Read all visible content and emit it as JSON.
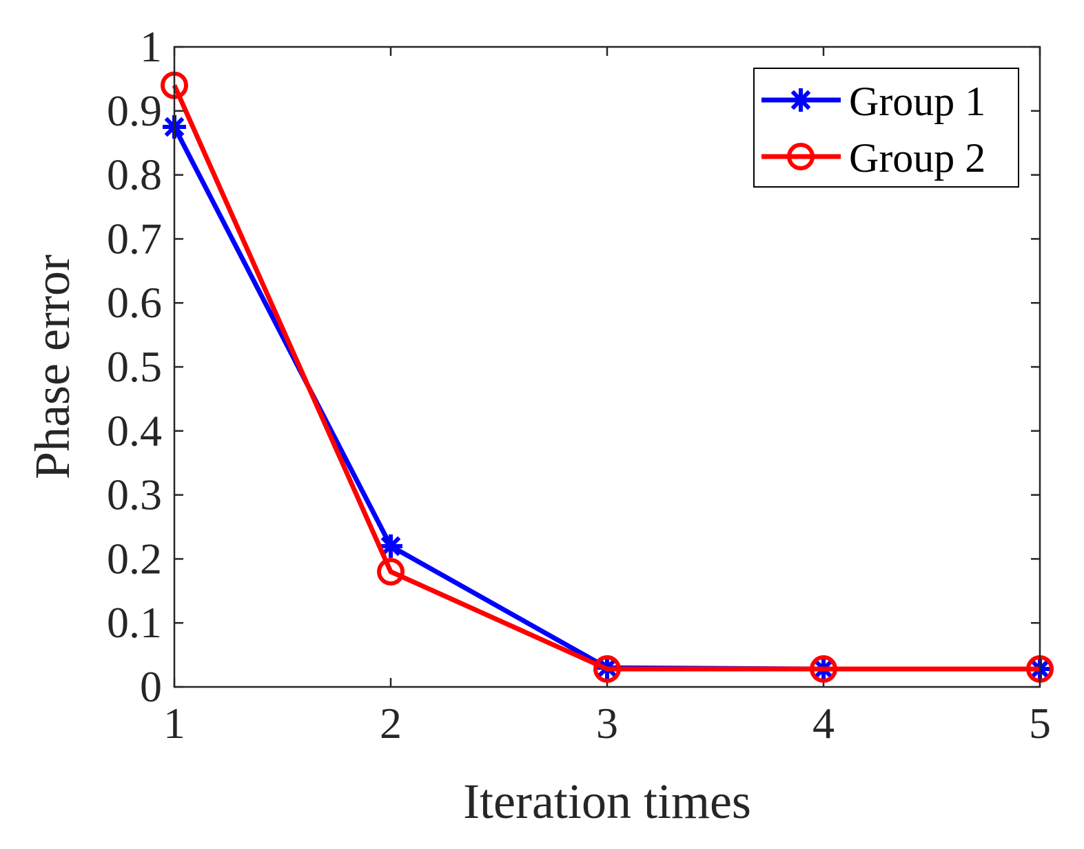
{
  "chart_data": {
    "type": "line",
    "title": "",
    "xlabel": "Iteration times",
    "ylabel": "Phase error",
    "x": [
      1,
      2,
      3,
      4,
      5
    ],
    "xlim": [
      1,
      5
    ],
    "ylim": [
      0,
      1
    ],
    "xticks": [
      "1",
      "2",
      "3",
      "4",
      "5"
    ],
    "yticks": [
      "0",
      "0.1",
      "0.2",
      "0.3",
      "0.4",
      "0.5",
      "0.6",
      "0.7",
      "0.8",
      "0.9",
      "1"
    ],
    "grid": false,
    "legend_position": "top-right",
    "series": [
      {
        "name": "Group 1",
        "color": "#0000ff",
        "marker": "asterisk",
        "values": [
          0.875,
          0.22,
          0.03,
          0.028,
          0.028
        ]
      },
      {
        "name": "Group 2",
        "color": "#ff0000",
        "marker": "circle",
        "values": [
          0.94,
          0.18,
          0.028,
          0.028,
          0.028
        ]
      }
    ]
  }
}
